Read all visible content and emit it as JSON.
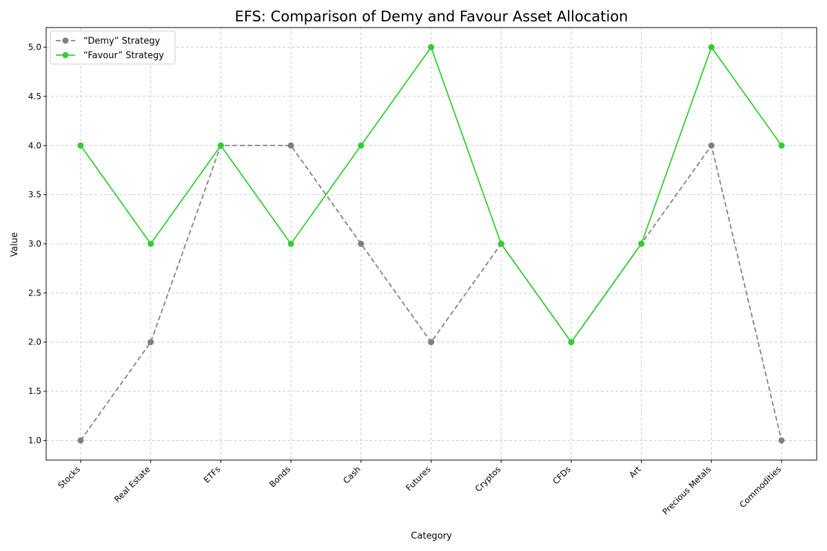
{
  "chart_data": {
    "type": "line",
    "title": "EFS: Comparison of Demy and Favour Asset Allocation",
    "xlabel": "Category",
    "ylabel": "Value",
    "categories": [
      "Stocks",
      "Real Estate",
      "ETFs",
      "Bonds",
      "Cash",
      "Futures",
      "Cryptos",
      "CFDs",
      "Art",
      "Precious Metals",
      "Commodities"
    ],
    "series": [
      {
        "name": "“Demy” Strategy",
        "values": [
          1,
          2,
          4,
          4,
          3,
          2,
          3,
          2,
          3,
          4,
          1
        ],
        "color": "#808080",
        "line_style": "dashed",
        "marker": "circle"
      },
      {
        "name": "“Favour” Strategy",
        "values": [
          4,
          3,
          4,
          3,
          4,
          5,
          3,
          2,
          3,
          5,
          4
        ],
        "color": "#33cc33",
        "line_style": "solid",
        "marker": "circle"
      }
    ],
    "ylim": [
      0.8,
      5.2
    ],
    "yticks": [
      1.0,
      1.5,
      2.0,
      2.5,
      3.0,
      3.5,
      4.0,
      4.5,
      5.0
    ],
    "ytick_labels": [
      "1.0",
      "1.5",
      "2.0",
      "2.5",
      "3.0",
      "3.5",
      "4.0",
      "4.5",
      "5.0"
    ],
    "grid": true,
    "legend_position": "top-left"
  }
}
